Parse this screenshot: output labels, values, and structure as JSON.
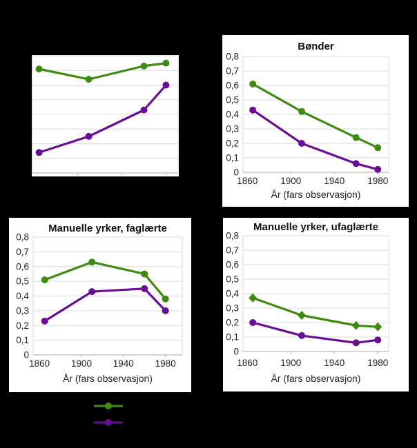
{
  "palette": {
    "background": "#000000",
    "panel": "#ffffff",
    "grid": "#d9d9d9",
    "axis": "#a8a8a8",
    "title_text": "#111111",
    "tick_text": "#222222",
    "green": "#3e8b0f",
    "purple": "#690d95"
  },
  "legend": {
    "items": [
      {
        "name": "green-series",
        "color": "#3e8b0f",
        "marker": "circle",
        "label": ""
      },
      {
        "name": "purple-series",
        "color": "#690d95",
        "marker": "circle",
        "label": ""
      }
    ]
  },
  "chart_data": [
    {
      "id": "top-left",
      "type": "line",
      "title": "",
      "xlabel": "",
      "ylabel": "",
      "x": [
        1865,
        1910,
        1960,
        1980
      ],
      "series": [
        {
          "name": "green",
          "color": "#3e8b0f",
          "marker": "circle",
          "values": [
            0.71,
            0.64,
            0.73,
            0.75
          ]
        },
        {
          "name": "purple",
          "color": "#690d95",
          "marker": "circle",
          "values": [
            0.14,
            0.25,
            0.43,
            0.6
          ]
        }
      ],
      "ylim": [
        0,
        0.8
      ],
      "yticks": [
        0,
        0.1,
        0.2,
        0.3,
        0.4,
        0.5,
        0.6,
        0.7,
        0.8
      ],
      "yticklabels": [],
      "xticks": [
        1860,
        1900,
        1940,
        1980
      ],
      "xticklabels": [],
      "xtick_marks": [
        1900,
        1940,
        1980
      ],
      "grid": true,
      "legend_position": "none"
    },
    {
      "id": "bonder",
      "type": "line",
      "title": "Bønder",
      "xlabel": "År (fars observasjon)",
      "ylabel": "",
      "x": [
        1865,
        1910,
        1960,
        1980
      ],
      "series": [
        {
          "name": "green",
          "color": "#3e8b0f",
          "marker": "circle",
          "values": [
            0.61,
            0.42,
            0.24,
            0.17
          ]
        },
        {
          "name": "purple",
          "color": "#690d95",
          "marker": "circle",
          "values": [
            0.43,
            0.2,
            0.06,
            0.02
          ]
        }
      ],
      "ylim": [
        0,
        0.8
      ],
      "yticks": [
        0,
        0.1,
        0.2,
        0.3,
        0.4,
        0.5,
        0.6,
        0.7,
        0.8
      ],
      "yticklabels": [
        "0",
        "0,1",
        "0,2",
        "0,3",
        "0,4",
        "0,5",
        "0,6",
        "0,7",
        "0,8"
      ],
      "xticks": [
        1860,
        1900,
        1940,
        1980
      ],
      "xticklabels": [
        "1860",
        "1900",
        "1940",
        "1980"
      ],
      "xtick_marks": [
        1900,
        1940,
        1980
      ],
      "grid": true,
      "legend_position": "none"
    },
    {
      "id": "faglaerte",
      "type": "line",
      "title": "Manuelle yrker, faglærte",
      "xlabel": "År (fars observasjon)",
      "ylabel": "",
      "x": [
        1865,
        1910,
        1960,
        1980
      ],
      "series": [
        {
          "name": "green",
          "color": "#3e8b0f",
          "marker": "circle",
          "values": [
            0.51,
            0.63,
            0.55,
            0.38
          ]
        },
        {
          "name": "purple",
          "color": "#690d95",
          "marker": "circle",
          "values": [
            0.23,
            0.43,
            0.45,
            0.3
          ]
        }
      ],
      "ylim": [
        0,
        0.8
      ],
      "yticks": [
        0,
        0.1,
        0.2,
        0.3,
        0.4,
        0.5,
        0.6,
        0.7,
        0.8
      ],
      "yticklabels": [
        "0",
        "0,1",
        "0,2",
        "0,3",
        "0,4",
        "0,5",
        "0,6",
        "0,7",
        "0,8"
      ],
      "xticks": [
        1860,
        1900,
        1940,
        1980
      ],
      "xticklabels": [
        "1860",
        "1900",
        "1940",
        "1980"
      ],
      "xtick_marks": [
        1900,
        1940,
        1980
      ],
      "grid": true,
      "legend_position": "none"
    },
    {
      "id": "ufaglaerte",
      "type": "line",
      "title": "Manuelle yrker, ufaglærte",
      "xlabel": "År (fars observasjon)",
      "ylabel": "",
      "x": [
        1865,
        1910,
        1960,
        1980
      ],
      "series": [
        {
          "name": "green",
          "color": "#3e8b0f",
          "marker": "diamond",
          "values": [
            0.37,
            0.25,
            0.18,
            0.17
          ]
        },
        {
          "name": "purple",
          "color": "#690d95",
          "marker": "circle",
          "values": [
            0.2,
            0.11,
            0.06,
            0.08
          ]
        }
      ],
      "ylim": [
        0,
        0.8
      ],
      "yticks": [
        0,
        0.1,
        0.2,
        0.3,
        0.4,
        0.5,
        0.6,
        0.7,
        0.8
      ],
      "yticklabels": [
        "0",
        "0,1",
        "0,2",
        "0,3",
        "0,4",
        "0,5",
        "0,6",
        "0,7",
        "0,8"
      ],
      "xticks": [
        1860,
        1900,
        1940,
        1980
      ],
      "xticklabels": [
        "1860",
        "1900",
        "1940",
        "1980"
      ],
      "xtick_marks": [
        1900,
        1940,
        1980
      ],
      "grid": true,
      "legend_position": "none"
    }
  ]
}
